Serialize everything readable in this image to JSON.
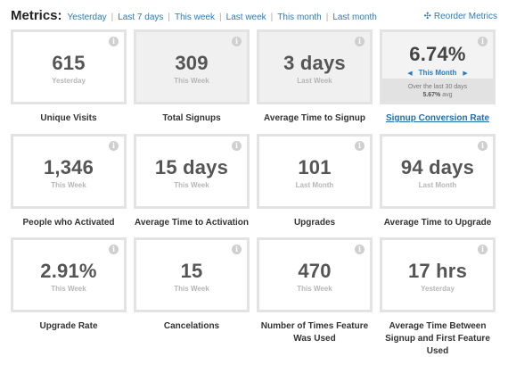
{
  "header": {
    "title": "Metrics:",
    "filters": [
      "Yesterday",
      "Last 7 days",
      "This week",
      "Last week",
      "This month",
      "Last month"
    ],
    "reorder_label": "Reorder Metrics",
    "reorder_icon": "move-cross-icon"
  },
  "cards": [
    {
      "value": "615",
      "period": "Yesterday",
      "label": "Unique Visits"
    },
    {
      "value": "309",
      "period": "This Week",
      "label": "Total Signups"
    },
    {
      "value": "3 days",
      "period": "Last Week",
      "label": "Average Time to Signup"
    },
    {
      "value": "6.74%",
      "period": "This Month",
      "label": "Signup Conversion Rate",
      "footer_text": "Over the last 30 days",
      "footer_avg": "5.67%",
      "footer_avg_suffix": "avg"
    },
    {
      "value": "1,346",
      "period": "This Week",
      "label": "People who Activated"
    },
    {
      "value": "15 days",
      "period": "This Week",
      "label": "Average Time to Activation"
    },
    {
      "value": "101",
      "period": "Last Month",
      "label": "Upgrades"
    },
    {
      "value": "94 days",
      "period": "Last Month",
      "label": "Average Time to Upgrade"
    },
    {
      "value": "2.91%",
      "period": "This Week",
      "label": "Upgrade Rate"
    },
    {
      "value": "15",
      "period": "This Week",
      "label": "Cancelations"
    },
    {
      "value": "470",
      "period": "This Week",
      "label": "Number of Times Feature Was Used"
    },
    {
      "value": "17 hrs",
      "period": "Yesterday",
      "label": "Average Time Between Signup and First Feature Used"
    }
  ],
  "info_icon_glyph": "i",
  "colors": {
    "link": "#2a7bbf",
    "card_border": "#e3e3e3",
    "value": "#555555",
    "period": "#b6b6b6"
  }
}
